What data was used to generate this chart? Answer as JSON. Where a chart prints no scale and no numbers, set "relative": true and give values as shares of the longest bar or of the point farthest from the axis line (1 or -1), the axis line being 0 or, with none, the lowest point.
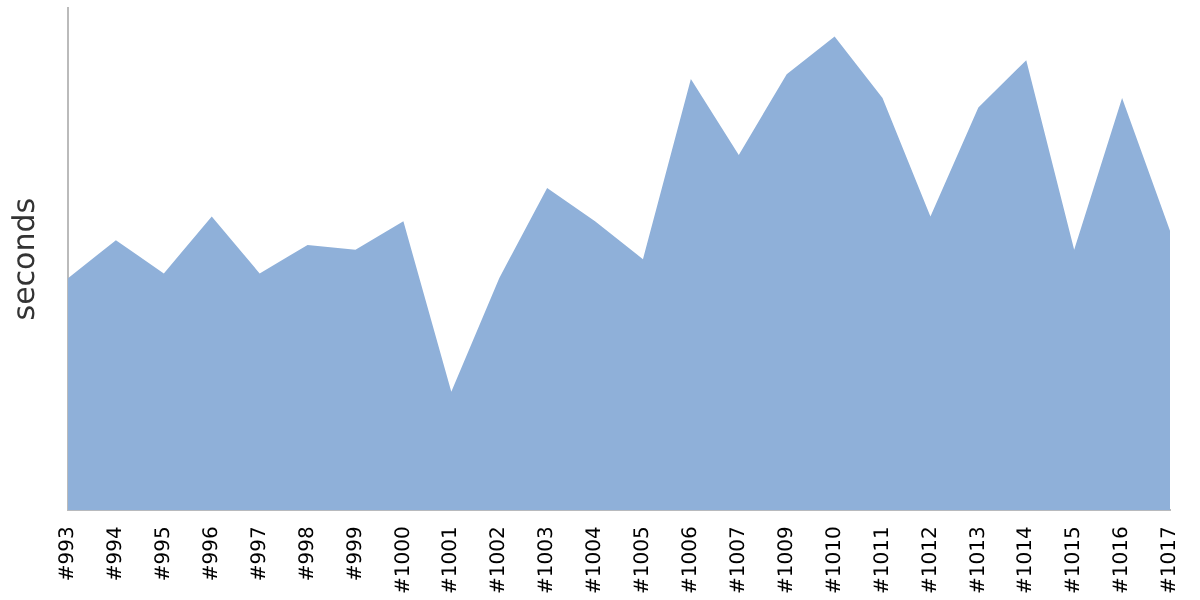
{
  "chart_data": {
    "type": "area",
    "ylabel": "seconds",
    "relative": true,
    "grid": false,
    "legend": false,
    "categories": [
      "#993",
      "#994",
      "#995",
      "#996",
      "#997",
      "#998",
      "#999",
      "#1000",
      "#1001",
      "#1002",
      "#1003",
      "#1004",
      "#1005",
      "#1006",
      "#1007",
      "#1009",
      "#1010",
      "#1011",
      "#1012",
      "#1013",
      "#1014",
      "#1015",
      "#1016",
      "#1017"
    ],
    "series": [
      {
        "color": "#8fb0d9",
        "values": [
          0.49,
          0.57,
          0.5,
          0.62,
          0.5,
          0.56,
          0.55,
          0.61,
          0.25,
          0.49,
          0.68,
          0.61,
          0.53,
          0.91,
          0.75,
          0.92,
          1,
          0.87,
          0.62,
          0.85,
          0.95,
          0.55,
          0.87,
          0.59
        ]
      }
    ]
  }
}
